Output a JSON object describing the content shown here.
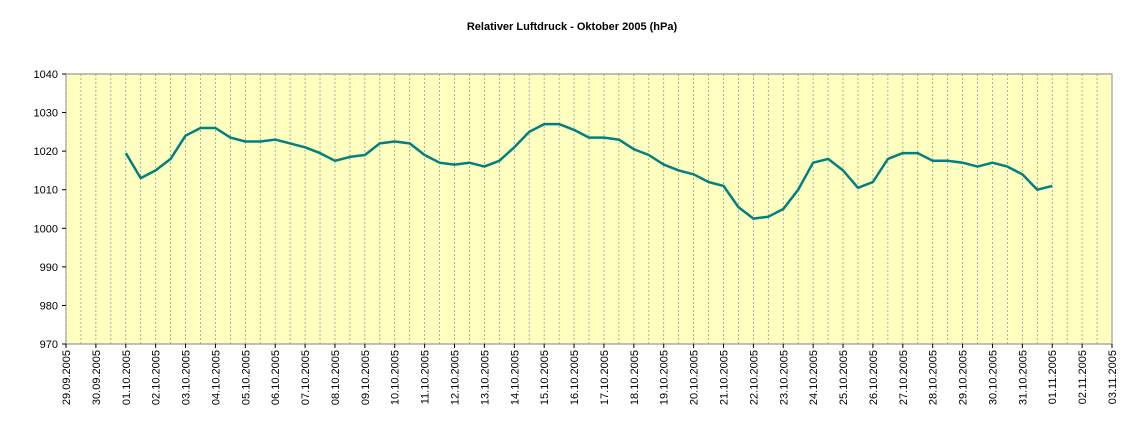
{
  "chart_data": {
    "type": "line",
    "title": "Relativer Luftdruck - Oktober 2005 (hPa)",
    "categories": [
      "29.09.2005",
      null,
      "30.09.2005",
      null,
      "01.10.2005",
      null,
      "02.10.2005",
      null,
      "03.10.2005",
      null,
      "04.10.2005",
      null,
      "05.10.2005",
      null,
      "06.10.2005",
      null,
      "07.10.2005",
      null,
      "08.10.2005",
      null,
      "09.10.2005",
      null,
      "10.10.2005",
      null,
      "11.10.2005",
      null,
      "12.10.2005",
      null,
      "13.10.2005",
      null,
      "14.10.2005",
      null,
      "15.10.2005",
      null,
      "16.10.2005",
      null,
      "17.10.2005",
      null,
      "18.10.2005",
      null,
      "19.10.2005",
      null,
      "20.10.2005",
      null,
      "21.10.2005",
      null,
      "22.10.2005",
      null,
      "23.10.2005",
      null,
      "24.10.2005",
      null,
      "25.10.2005",
      null,
      "26.10.2005",
      null,
      "27.10.2005",
      null,
      "28.10.2005",
      null,
      "29.10.2005",
      null,
      "30.10.2005",
      null,
      "31.10.2005",
      null,
      "01.11.2005",
      null,
      "02.11.2005",
      null,
      "03.11.2005"
    ],
    "series": [
      {
        "name": "Luftdruck",
        "color": "#008080",
        "values": [
          null,
          null,
          null,
          null,
          1019.5,
          1013,
          1015,
          1018,
          1024,
          1026,
          1026,
          1023.5,
          1022.5,
          1022.5,
          1023,
          1022,
          1021,
          1019.5,
          1017.5,
          1018.5,
          1019,
          1022,
          1022.5,
          1022,
          1019,
          1017,
          1016.5,
          1017,
          1016,
          1017.5,
          1021,
          1025,
          1027,
          1027,
          1025.5,
          1023.5,
          1023.5,
          1023,
          1020.5,
          1019,
          1016.5,
          1015,
          1014,
          1012,
          1011,
          1005.5,
          1002.5,
          1003,
          1005,
          1010,
          1017,
          1018,
          1015,
          1010.5,
          1012,
          1018,
          1019.5,
          1019.5,
          1017.5,
          1017.5,
          1017,
          1016,
          1017,
          1016,
          1014,
          1010,
          1011,
          null,
          null,
          null,
          null
        ]
      }
    ],
    "ylim": [
      970,
      1040
    ],
    "yticks": [
      970,
      980,
      990,
      1000,
      1010,
      1020,
      1030,
      1040
    ],
    "grid": true,
    "background": "#ffffc0"
  }
}
